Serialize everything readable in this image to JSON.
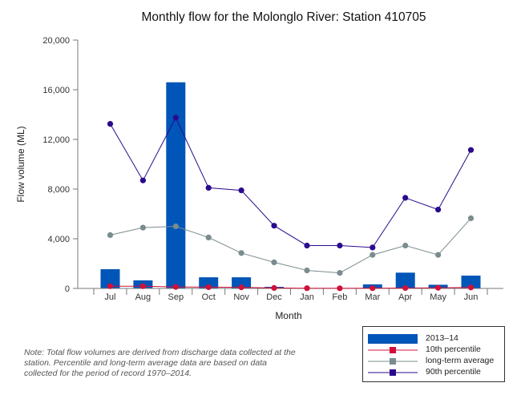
{
  "chart_data": {
    "type": "bar+line",
    "title": "Monthly flow for the Molonglo River: Station 410705",
    "xlabel": "Month",
    "ylabel": "Flow volume (ML)",
    "ylim": [
      0,
      20000
    ],
    "yticks": [
      0,
      4000,
      8000,
      12000,
      16000,
      20000
    ],
    "ytick_labels": [
      "0",
      "4,000",
      "8,000",
      "12,000",
      "16,000",
      "20,000"
    ],
    "categories": [
      "Jul",
      "Aug",
      "Sep",
      "Oct",
      "Nov",
      "Dec",
      "Jan",
      "Feb",
      "Mar",
      "Apr",
      "May",
      "Jun"
    ],
    "grid": false,
    "legend_position": "bottom-right",
    "series": [
      {
        "name": "2013–14",
        "kind": "bar",
        "color": "#0055b8",
        "values": [
          1550,
          650,
          16600,
          900,
          900,
          130,
          30,
          30,
          330,
          1270,
          300,
          1030
        ]
      },
      {
        "name": "10th percentile",
        "kind": "line",
        "color": "#d0103a",
        "values": [
          180,
          180,
          120,
          100,
          90,
          40,
          20,
          10,
          20,
          30,
          50,
          80
        ]
      },
      {
        "name": "long-term average",
        "kind": "line",
        "color": "#7a8c8e",
        "values": [
          4300,
          4900,
          5000,
          4100,
          2850,
          2100,
          1450,
          1250,
          2700,
          3450,
          2700,
          5650
        ]
      },
      {
        "name": "90th percentile",
        "kind": "line",
        "color": "#2a0a8c",
        "values": [
          13250,
          8700,
          13750,
          8100,
          7900,
          5050,
          3450,
          3450,
          3300,
          7300,
          6350,
          11150
        ]
      }
    ]
  },
  "note": "Note: Total flow volumes are derived from discharge data collected at the station. Percentile and long-term average data are based on data collected for the period of record 1970–2014."
}
